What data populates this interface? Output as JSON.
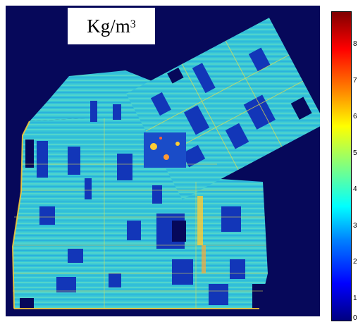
{
  "unit_label": {
    "base": "Kg/m",
    "exponent": "3"
  },
  "colorbar": {
    "colormap": "jet",
    "tick_labels": [
      "8",
      "7",
      "6",
      "5",
      "4",
      "3",
      "2",
      "1",
      "0"
    ],
    "colors": {
      "low": "#00007f",
      "mid": "#00ffff",
      "high": "#7f0000"
    }
  },
  "map": {
    "background_color": "#06085a",
    "field_color": "#33c8dc",
    "low_color": "#1236b8",
    "edge_color": "#ffcc33"
  }
}
